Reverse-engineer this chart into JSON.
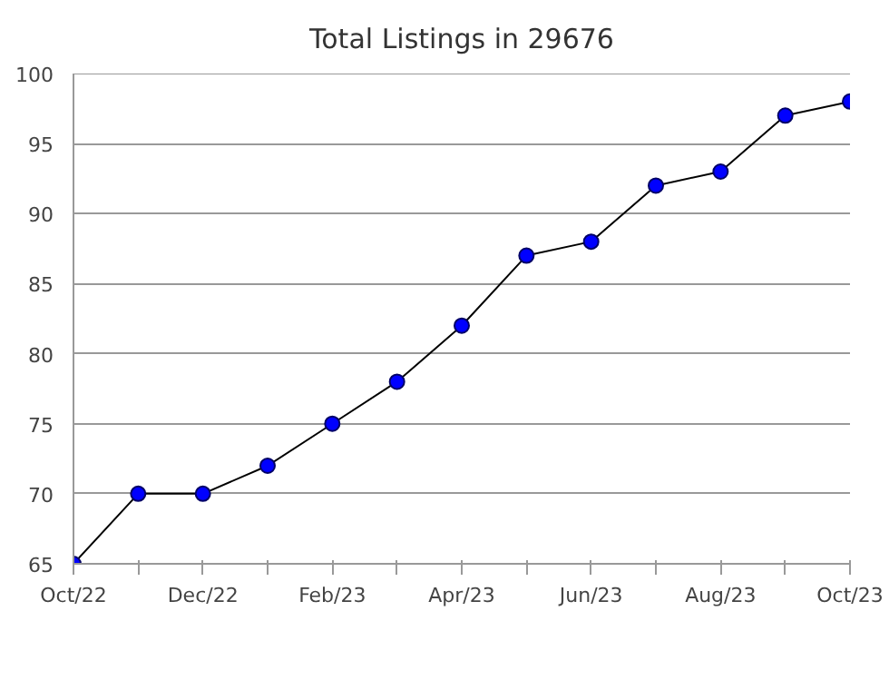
{
  "chart_data": {
    "type": "line",
    "title": "Total Listings in 29676",
    "categories": [
      "Oct/22",
      null,
      "Dec/22",
      null,
      "Feb/23",
      null,
      "Apr/23",
      null,
      "Jun/23",
      null,
      "Aug/23",
      null,
      "Oct/23"
    ],
    "series": [
      {
        "color": "#0000ff",
        "values": [
          65,
          70,
          70,
          72,
          75,
          78,
          82,
          87,
          88,
          92,
          93,
          97,
          98
        ]
      }
    ],
    "ylim": [
      65,
      100
    ],
    "yticks": [
      65,
      70,
      75,
      80,
      85,
      90,
      95,
      100
    ],
    "grid": "y",
    "marker": "circle",
    "line_style": "solid"
  }
}
